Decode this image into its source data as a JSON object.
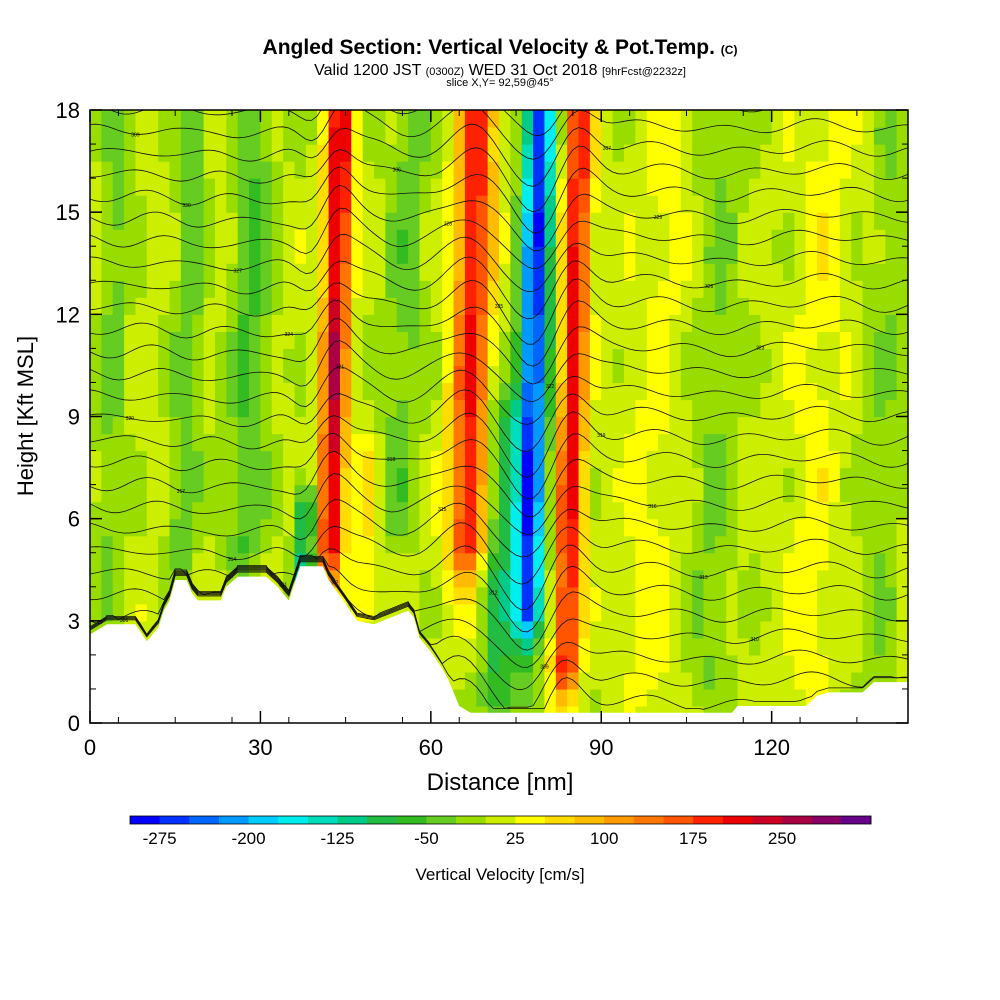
{
  "header": {
    "title_main": "Angled Section: Vertical Velocity & Pot.Temp.",
    "title_unit": "(C)",
    "valid_a": "Valid 1200 JST",
    "valid_b": "(0300Z)",
    "valid_c": "WED 31 Oct 2018",
    "valid_d": "[9hrFcst@2232z]",
    "slice": "slice X,Y= 92,59@45°"
  },
  "chart_data": {
    "type": "heatmap",
    "xlabel": "Distance [nm]",
    "ylabel": "Height [Kft MSL]",
    "xlim": [
      0,
      144
    ],
    "ylim": [
      0,
      18
    ],
    "xticks": [
      0,
      30,
      60,
      90,
      120
    ],
    "yticks": [
      0,
      3,
      6,
      9,
      12,
      15,
      18
    ],
    "features": [
      {
        "kind": "updraft",
        "x": 43,
        "w": 2.2,
        "amp": 230,
        "top": 18,
        "bottom": 5
      },
      {
        "kind": "downdraft",
        "x": 38.5,
        "w": 1.8,
        "amp": -130,
        "top": 6.5,
        "bottom": 4
      },
      {
        "kind": "updraft",
        "x": 67,
        "w": 3.2,
        "amp": 190,
        "top": 18,
        "bottom": 5
      },
      {
        "kind": "downdraft",
        "x": 78,
        "w": 2.6,
        "amp": -280,
        "top": 18,
        "bottom": 3
      },
      {
        "kind": "updraft",
        "x": 85,
        "w": 2.3,
        "amp": 200,
        "top": 18,
        "bottom": 1.5
      },
      {
        "kind": "downdraft",
        "x": 73,
        "w": 2.8,
        "amp": -90,
        "top": 9,
        "bottom": 0.5
      },
      {
        "kind": "downdraft",
        "x": 55,
        "w": 3.5,
        "amp": -45,
        "top": 18,
        "bottom": 6
      },
      {
        "kind": "downdraft",
        "x": 28,
        "w": 3.5,
        "amp": -60,
        "top": 18,
        "bottom": 5
      },
      {
        "kind": "downdraft",
        "x": 17,
        "w": 2.5,
        "amp": -55,
        "top": 18,
        "bottom": 5
      },
      {
        "kind": "downdraft",
        "x": 4,
        "w": 2.5,
        "amp": -40,
        "top": 18,
        "bottom": 4
      },
      {
        "kind": "updraft",
        "x": 49,
        "w": 2.0,
        "amp": 45,
        "top": 8,
        "bottom": 3
      },
      {
        "kind": "updraft",
        "x": 100,
        "w": 5.0,
        "amp": 25,
        "top": 18,
        "bottom": 1
      },
      {
        "kind": "downdraft",
        "x": 110,
        "w": 4.0,
        "amp": -35,
        "top": 18,
        "bottom": 1
      },
      {
        "kind": "updraft",
        "x": 128,
        "w": 4.0,
        "amp": 30,
        "top": 18,
        "bottom": 1
      },
      {
        "kind": "downdraft",
        "x": 140,
        "w": 3.0,
        "amp": -30,
        "top": 18,
        "bottom": 1
      }
    ],
    "terrain": [
      [
        0,
        2.6
      ],
      [
        3,
        2.9
      ],
      [
        8,
        2.9
      ],
      [
        10,
        2.4
      ],
      [
        12,
        2.8
      ],
      [
        13,
        3.3
      ],
      [
        14,
        3.6
      ],
      [
        15,
        4.2
      ],
      [
        17,
        4.2
      ],
      [
        18,
        3.8
      ],
      [
        19,
        3.6
      ],
      [
        23,
        3.6
      ],
      [
        24,
        4.0
      ],
      [
        26,
        4.3
      ],
      [
        31,
        4.3
      ],
      [
        33,
        4.0
      ],
      [
        34,
        3.8
      ],
      [
        35,
        3.6
      ],
      [
        37,
        4.6
      ],
      [
        41,
        4.6
      ],
      [
        42,
        4.2
      ],
      [
        45,
        3.5
      ],
      [
        47,
        3.0
      ],
      [
        50,
        2.9
      ],
      [
        53,
        3.1
      ],
      [
        56,
        3.3
      ],
      [
        57,
        3.1
      ],
      [
        58,
        2.5
      ],
      [
        60,
        2.1
      ],
      [
        62,
        1.6
      ],
      [
        63,
        1.3
      ],
      [
        64,
        0.9
      ],
      [
        65,
        0.5
      ],
      [
        67,
        0.3
      ],
      [
        113,
        0.3
      ],
      [
        114,
        0.5
      ],
      [
        120,
        0.5
      ],
      [
        124,
        0.5
      ],
      [
        126,
        0.5
      ],
      [
        128,
        0.8
      ],
      [
        130,
        0.9
      ],
      [
        136,
        0.9
      ],
      [
        138,
        1.2
      ],
      [
        144,
        1.2
      ]
    ],
    "contour_labels": [
      "306",
      "307",
      "309",
      "310",
      "311",
      "312",
      "313",
      "314",
      "315",
      "316",
      "317",
      "318",
      "319",
      "320",
      "321",
      "322",
      "323",
      "324",
      "325",
      "326",
      "327",
      "328",
      "329",
      "330"
    ],
    "colorbar": {
      "label": "Vertical Velocity [cm/s]",
      "tick_labels": [
        "-275",
        "-200",
        "-125",
        "-50",
        "25",
        "100",
        "175",
        "250"
      ],
      "colors": [
        "#0000ff",
        "#0032ff",
        "#0066ff",
        "#0099ff",
        "#00ccff",
        "#00eeee",
        "#00ddbb",
        "#00cc88",
        "#22bb44",
        "#33bb22",
        "#66cc22",
        "#99dd00",
        "#ccee00",
        "#ffff00",
        "#ffdd00",
        "#ffbb00",
        "#ff9900",
        "#ff7700",
        "#ff5500",
        "#ff2200",
        "#ee0000",
        "#cc0022",
        "#aa0044",
        "#880066",
        "#660088"
      ]
    }
  }
}
